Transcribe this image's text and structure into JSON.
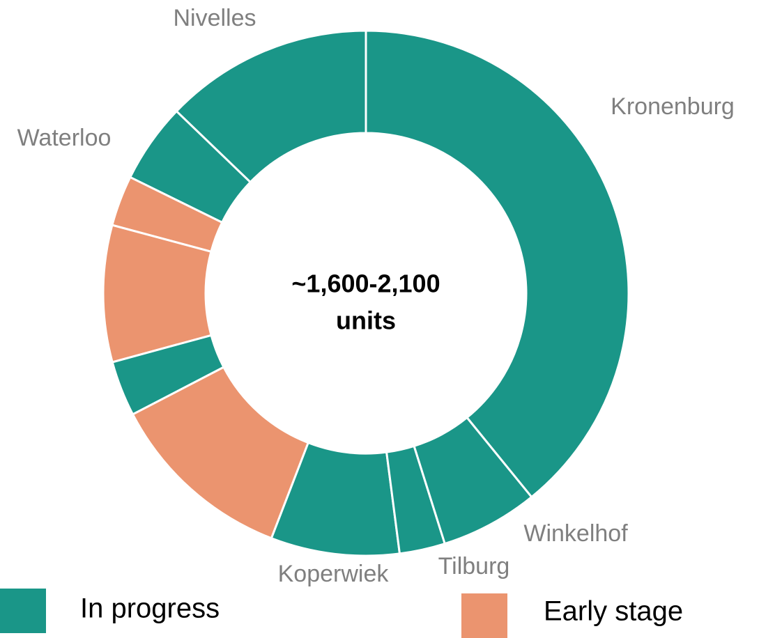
{
  "chart_data": {
    "type": "donut",
    "center_text": [
      "~1,600-2,100",
      "units"
    ],
    "categories": [
      "Kronenburg",
      "Winkelhof",
      "Tilburg",
      "Koperwiek",
      null,
      null,
      null,
      null,
      "Waterloo",
      "Nivelles"
    ],
    "values": [
      39.1,
      6.0,
      2.8,
      7.9,
      11.5,
      3.4,
      8.4,
      3.1,
      4.9,
      12.8
    ],
    "colors": [
      "#1a9688",
      "#1a9688",
      "#1a9688",
      "#1a9688",
      "#eb946f",
      "#1a9688",
      "#eb946f",
      "#eb946f",
      "#1a9688",
      "#1a9688"
    ],
    "legend": [
      {
        "name": "In progress",
        "color": "#1a9688"
      },
      {
        "name": "Early stage",
        "color": "#eb946f"
      }
    ]
  }
}
